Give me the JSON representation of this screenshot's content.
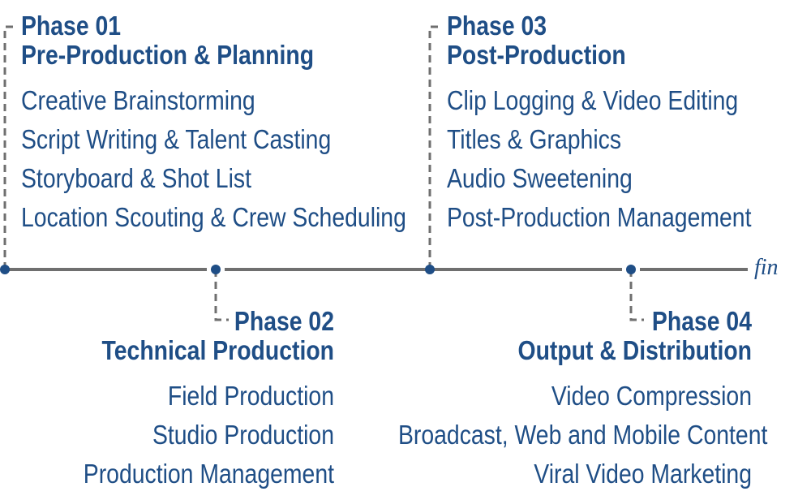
{
  "colors": {
    "accent": "#1f4e86",
    "timeline": "#6f6f6f",
    "dash": "#6f6f6f"
  },
  "end_label": "fin",
  "phases": [
    {
      "number": "Phase 01",
      "title": "Pre-Production & Planning",
      "items": [
        "Creative Brainstorming",
        "Script Writing & Talent Casting",
        "Storyboard & Shot List",
        "Location Scouting & Crew Scheduling"
      ]
    },
    {
      "number": "Phase 02",
      "title": "Technical Production",
      "items": [
        "Field Production",
        "Studio Production",
        "Production Management"
      ]
    },
    {
      "number": "Phase 03",
      "title": "Post-Production",
      "items": [
        "Clip Logging & Video Editing",
        "Titles & Graphics",
        "Audio Sweetening",
        "Post-Production Management"
      ]
    },
    {
      "number": "Phase 04",
      "title": "Output & Distribution",
      "items": [
        "Video Compression",
        "Broadcast, Web and Mobile Content",
        "Viral Video Marketing"
      ]
    }
  ]
}
